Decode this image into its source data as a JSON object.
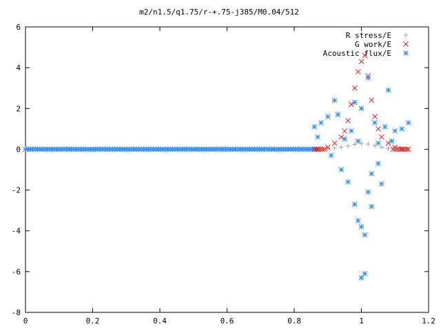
{
  "chart_data": {
    "type": "scatter",
    "title": "m2/n1.5/q1.75/r-+.75-j385/M0.04/512",
    "xlabel": "",
    "ylabel": "",
    "xlim": [
      0,
      1.2
    ],
    "ylim": [
      -8,
      6
    ],
    "x_ticks": [
      "0",
      "0.2",
      "0.4",
      "0.6",
      "0.8",
      "1",
      "1.2"
    ],
    "y_ticks": [
      "-8",
      "-6",
      "-4",
      "-2",
      "0",
      "2",
      "4",
      "6"
    ],
    "legend_position": "top-right",
    "grid": false,
    "series": [
      {
        "name": "R stress/E",
        "marker": "plus",
        "color": "#a0a0a4",
        "x": [
          0.9,
          0.92,
          0.94,
          0.96,
          0.98,
          1.0,
          1.02,
          1.04,
          1.06,
          1.08,
          1.1
        ],
        "y": [
          0.02,
          0.05,
          0.1,
          0.16,
          0.24,
          0.28,
          0.25,
          0.18,
          0.1,
          0.04,
          0.02
        ]
      },
      {
        "name": "G work/E",
        "marker": "x",
        "color": "#e0201b",
        "x": [
          0.87,
          0.9,
          0.92,
          0.94,
          0.95,
          0.96,
          0.97,
          0.98,
          0.99,
          1.0,
          1.01,
          1.02,
          1.03,
          1.04,
          1.05,
          1.06,
          1.08,
          1.1,
          1.12,
          1.14
        ],
        "y": [
          0.0,
          0.1,
          0.3,
          0.6,
          0.9,
          1.4,
          2.2,
          3.0,
          3.8,
          4.3,
          4.6,
          3.6,
          2.4,
          1.6,
          1.0,
          0.6,
          0.3,
          0.1,
          0.02,
          0.0
        ]
      },
      {
        "name": "Acoustic flux/E",
        "marker": "asterisk",
        "color": "#2c8ef0",
        "x": [
          0.86,
          0.87,
          0.88,
          0.9,
          0.91,
          0.92,
          0.93,
          0.94,
          0.95,
          0.96,
          0.97,
          0.98,
          0.98,
          0.99,
          0.99,
          1.0,
          1.0,
          1.0,
          1.01,
          1.01,
          1.02,
          1.02,
          1.03,
          1.03,
          1.04,
          1.05,
          1.05,
          1.06,
          1.07,
          1.08,
          1.09,
          1.1,
          1.12,
          1.14
        ],
        "y": [
          1.1,
          0.6,
          1.3,
          1.6,
          -0.3,
          2.4,
          1.7,
          -1.0,
          0.5,
          -1.6,
          0.9,
          -2.7,
          2.3,
          -3.5,
          0.4,
          -6.3,
          -3.8,
          2.0,
          -6.1,
          -4.2,
          -2.1,
          3.5,
          -1.2,
          -2.8,
          1.3,
          -0.7,
          0.3,
          -1.7,
          1.1,
          2.9,
          0.4,
          0.9,
          1.0,
          1.3
        ]
      }
    ]
  }
}
